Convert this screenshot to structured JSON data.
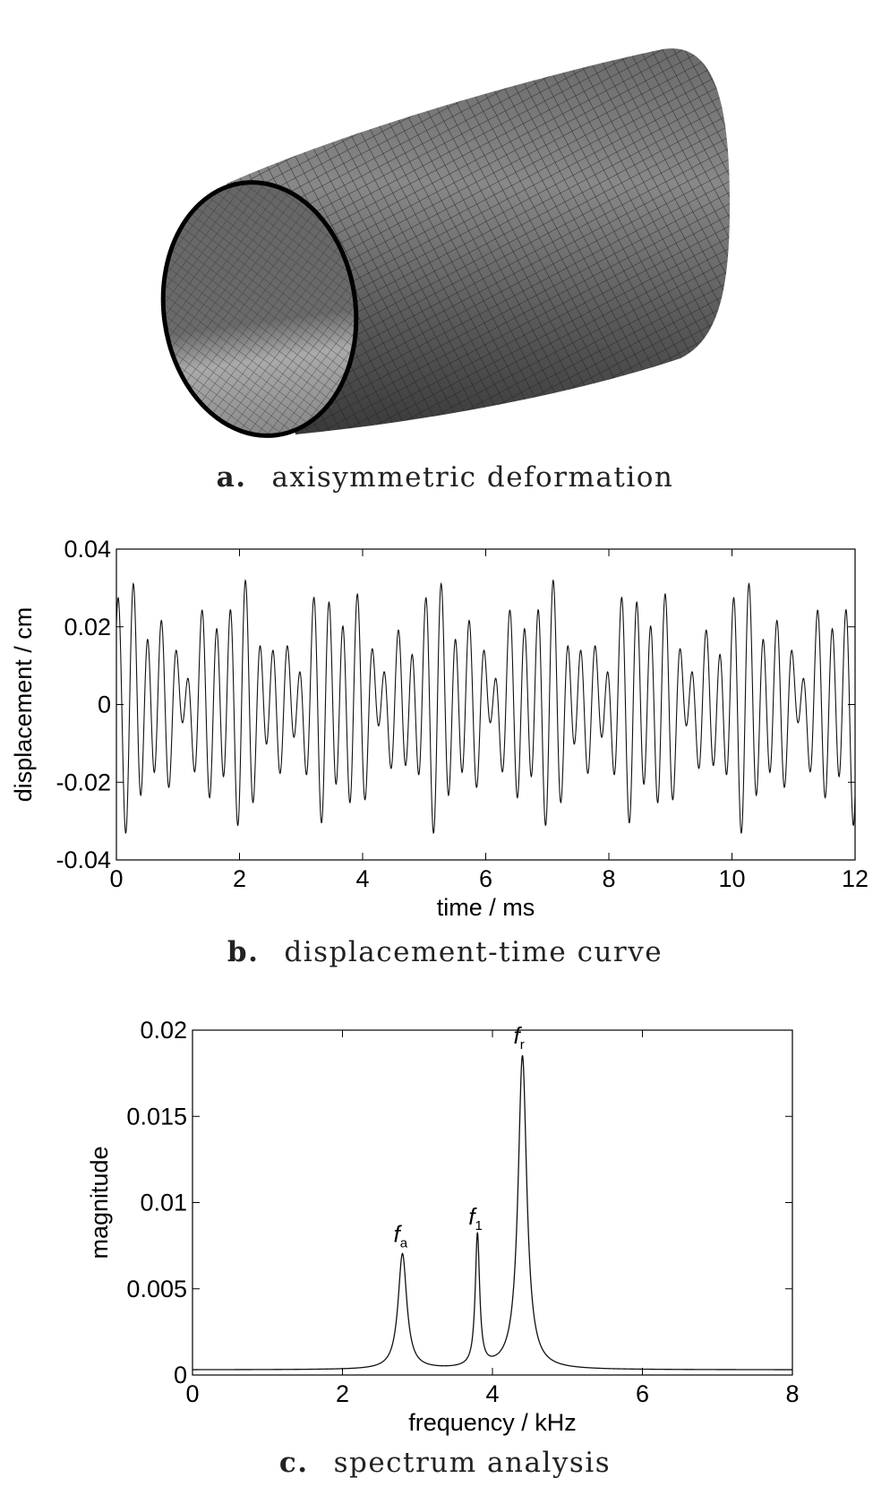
{
  "figures": {
    "a": {
      "label": "a.",
      "caption": "axisymmetric deformation"
    },
    "b": {
      "label": "b.",
      "caption": "displacement-time curve"
    },
    "c": {
      "label": "c.",
      "caption": "spectrum analysis"
    }
  },
  "chart_data": [
    {
      "type": "line",
      "xlabel": "time / ms",
      "ylabel": "displacement / cm",
      "xlim": [
        0,
        12
      ],
      "ylim": [
        -0.04,
        0.04
      ],
      "xticks": [
        "0",
        "2",
        "4",
        "6",
        "8",
        "10",
        "12"
      ],
      "yticks": [
        "0.04",
        "0.02",
        "0",
        "-0.02",
        "-0.04"
      ],
      "grid": false,
      "signal_components": [
        {
          "frequency_khz": 4.4,
          "amplitude_cm": 0.0185
        },
        {
          "frequency_khz": 3.8,
          "amplitude_cm": 0.008
        },
        {
          "frequency_khz": 2.8,
          "amplitude_cm": 0.007
        }
      ]
    },
    {
      "type": "line",
      "xlabel": "frequency / kHz",
      "ylabel": "magnitude",
      "xlim": [
        0,
        8
      ],
      "ylim": [
        0,
        0.02
      ],
      "xticks": [
        "0",
        "2",
        "4",
        "6",
        "8"
      ],
      "yticks": [
        "0.02",
        "0.015",
        "0.01",
        "0.005",
        "0"
      ],
      "grid": false,
      "baseline": 0.0003,
      "peaks": [
        {
          "name": "f",
          "sub": "a",
          "x": 2.8,
          "y": 0.007
        },
        {
          "name": "f",
          "sub": "1",
          "x": 3.8,
          "y": 0.008
        },
        {
          "name": "f",
          "sub": "r",
          "x": 4.4,
          "y": 0.0185
        }
      ]
    }
  ]
}
